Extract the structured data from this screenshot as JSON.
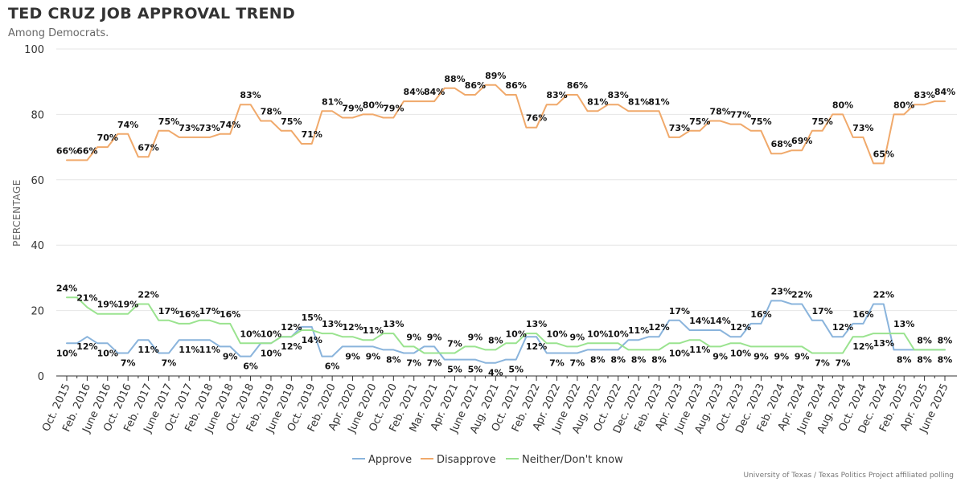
{
  "header": {
    "title": "TED CRUZ JOB APPROVAL TREND",
    "subtitle": "Among Democrats."
  },
  "footer": {
    "source": "University of Texas / Texas Politics Project affiliated polling"
  },
  "chart_data": {
    "type": "line",
    "ylabel": "PERCENTAGE",
    "ylim": [
      0,
      100
    ],
    "yticks": [
      0,
      20,
      40,
      60,
      80,
      100
    ],
    "grid": "horizontal",
    "legend_position": "bottom",
    "x": [
      "Oct. 2015",
      "",
      "Feb. 2016",
      "",
      "June 2016",
      "",
      "Oct. 2016",
      "",
      "Feb. 2017",
      "",
      "June 2017",
      "",
      "Oct. 2017",
      "",
      "Feb. 2018",
      "",
      "June 2018",
      "",
      "Oct. 2018",
      "",
      "Feb. 2019",
      "",
      "June 2019",
      "",
      "Oct. 2019",
      "",
      "Feb. 2020",
      "",
      "Apr. 2020",
      "",
      "June 2020",
      "",
      "Oct. 2020",
      "",
      "Feb. 2021",
      "",
      "Mar. 2021",
      "",
      "Apr. 2021",
      "",
      "June 2021",
      "",
      "Aug. 2021",
      "",
      "Oct. 2021",
      "",
      "Feb. 2022",
      "",
      "Apr. 2022",
      "",
      "June 2022",
      "",
      "Aug. 2022",
      "",
      "Oct. 2022",
      "",
      "Dec. 2022",
      "",
      "Feb. 2023",
      "",
      "Apr. 2023",
      "",
      "June 2023",
      "",
      "Aug. 2023",
      "",
      "Oct. 2023",
      "",
      "Dec. 2023",
      "",
      "Feb. 2024",
      "",
      "Apr. 2024",
      "",
      "June 2024",
      "",
      "Aug. 2024",
      "",
      "Oct. 2024",
      "",
      "Dec. 2024",
      "",
      "Feb. 2025",
      "",
      "Apr. 2025",
      "",
      "June 2025"
    ],
    "series": [
      {
        "name": "Approve",
        "color": "#8ab4dc",
        "values": [
          10,
          10,
          12,
          10,
          10,
          7,
          7,
          11,
          11,
          7,
          7,
          11,
          11,
          11,
          11,
          9,
          9,
          6,
          6,
          10,
          10,
          12,
          12,
          15,
          15,
          6,
          6,
          9,
          9,
          9,
          9,
          8,
          8,
          7,
          7,
          9,
          9,
          5,
          5,
          5,
          5,
          4,
          4,
          5,
          5,
          12,
          12,
          7,
          7,
          7,
          7,
          8,
          8,
          8,
          8,
          11,
          11,
          12,
          12,
          17,
          17,
          14,
          14,
          14,
          14,
          12,
          12,
          16,
          16,
          23,
          23,
          22,
          22,
          17,
          17,
          12,
          12,
          16,
          16,
          22,
          22,
          8,
          8,
          8,
          8,
          8,
          8
        ]
      },
      {
        "name": "Disapprove",
        "color": "#f0a96b",
        "values": [
          66,
          66,
          66,
          70,
          70,
          74,
          74,
          67,
          67,
          75,
          75,
          73,
          73,
          73,
          73,
          74,
          74,
          83,
          83,
          78,
          78,
          75,
          75,
          71,
          71,
          81,
          81,
          79,
          79,
          80,
          80,
          79,
          79,
          84,
          84,
          84,
          84,
          88,
          88,
          86,
          86,
          89,
          89,
          86,
          86,
          76,
          76,
          83,
          83,
          86,
          86,
          81,
          81,
          83,
          83,
          81,
          81,
          81,
          81,
          73,
          73,
          75,
          75,
          78,
          78,
          77,
          77,
          75,
          75,
          68,
          68,
          69,
          69,
          75,
          75,
          80,
          80,
          73,
          73,
          65,
          65,
          80,
          80,
          83,
          83,
          84,
          84
        ]
      },
      {
        "name": "Neither/Don't know",
        "color": "#9ae38f",
        "values": [
          24,
          24,
          21,
          19,
          19,
          19,
          19,
          22,
          22,
          17,
          17,
          16,
          16,
          17,
          17,
          16,
          16,
          10,
          10,
          10,
          10,
          12,
          12,
          14,
          14,
          13,
          13,
          12,
          12,
          11,
          11,
          13,
          13,
          9,
          9,
          7,
          7,
          7,
          7,
          9,
          9,
          8,
          8,
          10,
          10,
          13,
          13,
          10,
          10,
          9,
          9,
          10,
          10,
          10,
          10,
          8,
          8,
          8,
          8,
          10,
          10,
          11,
          11,
          9,
          9,
          10,
          10,
          9,
          9,
          9,
          9,
          9,
          9,
          7,
          7,
          7,
          7,
          12,
          12,
          13,
          13,
          13,
          13,
          8,
          8,
          8,
          8
        ]
      }
    ]
  }
}
